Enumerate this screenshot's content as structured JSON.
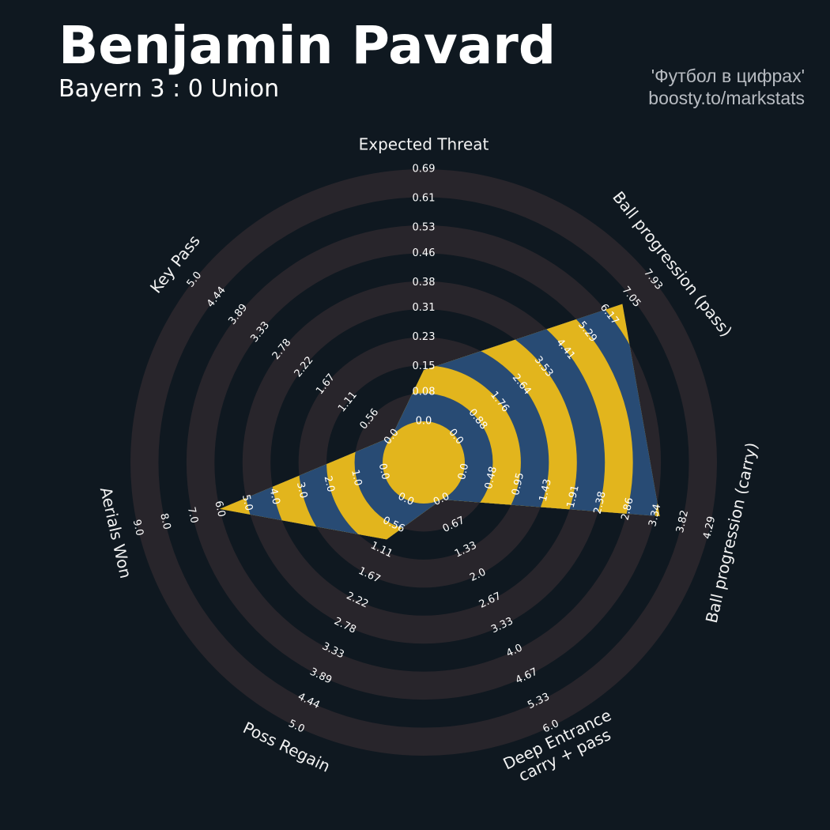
{
  "chart_data": {
    "type": "radar",
    "title": "Benjamin Pavard",
    "subtitle": "Bayern 3 : 0 Union",
    "credits": [
      "'Футбол в цифрах'",
      "boosty.to/markstats"
    ],
    "background": "#0f1820",
    "ring_color": "#28252b",
    "color": "#284b74",
    "alt_color": "#e2b51d",
    "axes": [
      {
        "name": "Expected Threat",
        "lim": [
          0,
          0.69
        ],
        "ticks": [
          {
            "value": 0,
            "label": "0.0"
          },
          0.08,
          0.15,
          0.23,
          0.31,
          0.38,
          0.46,
          0.53,
          0.61,
          0.69
        ]
      },
      {
        "name": "Ball progression (pass)",
        "lim": [
          0,
          7.93
        ],
        "ticks": [
          {
            "value": 0,
            "label": "0.0"
          },
          0.88,
          1.76,
          2.64,
          3.53,
          4.41,
          5.29,
          6.17,
          7.05,
          7.93
        ]
      },
      {
        "name": "Ball progression (carry)",
        "lim": [
          0,
          4.29
        ],
        "ticks": [
          {
            "value": 0,
            "label": "0.0"
          },
          0.48,
          0.95,
          1.43,
          1.91,
          2.38,
          2.86,
          3.34,
          3.82,
          4.29
        ]
      },
      {
        "name": "Deep Entrance\ncarry + pass",
        "lim": [
          0,
          6
        ],
        "ticks": [
          {
            "value": 0,
            "label": "0.0"
          },
          0.67,
          1.33,
          {
            "value": 2,
            "label": "2.0"
          },
          2.67,
          3.33,
          {
            "value": 4,
            "label": "4.0"
          },
          4.67,
          5.33,
          {
            "value": 6,
            "label": "6.0"
          }
        ]
      },
      {
        "name": "Poss Regain",
        "lim": [
          0,
          5
        ],
        "ticks": [
          {
            "value": 0,
            "label": "0.0"
          },
          0.56,
          1.11,
          1.67,
          2.22,
          2.78,
          3.33,
          3.89,
          4.44,
          {
            "value": 5,
            "label": "5.0"
          }
        ]
      },
      {
        "name": "Aerials Won",
        "lim": [
          0,
          9
        ],
        "ticks": [
          {
            "value": 0,
            "label": "0.0"
          },
          {
            "value": 1,
            "label": "1.0"
          },
          {
            "value": 2,
            "label": "2.0"
          },
          {
            "value": 3,
            "label": "3.0"
          },
          {
            "value": 4,
            "label": "4.0"
          },
          {
            "value": 5,
            "label": "5.0"
          },
          {
            "value": 6,
            "label": "6.0"
          },
          {
            "value": 7,
            "label": "7.0"
          },
          {
            "value": 8,
            "label": "8.0"
          },
          {
            "value": 9,
            "label": "9.0"
          }
        ]
      },
      {
        "name": "Key Pass",
        "lim": [
          0,
          5
        ],
        "ticks": [
          {
            "value": 0,
            "label": "0.0"
          },
          0.56,
          1.11,
          1.67,
          2.22,
          2.78,
          3.33,
          3.89,
          4.44,
          {
            "value": 5,
            "label": "5.0"
          }
        ]
      }
    ],
    "values": [
      0.14,
      6.7,
      3.42,
      0,
      0.88,
      6,
      0
    ]
  }
}
